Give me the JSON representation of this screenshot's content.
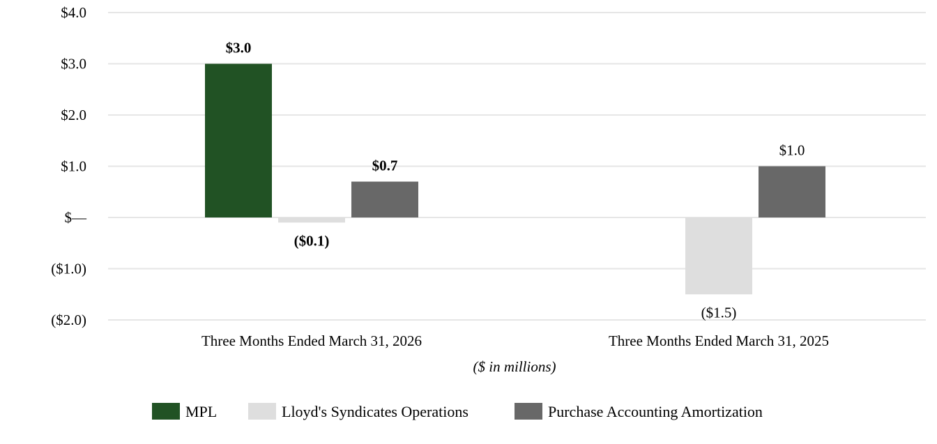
{
  "chart_data": {
    "type": "bar",
    "title": "",
    "xlabel": "($ in millions)",
    "ylabel": "",
    "ylim": [
      -2.0,
      4.0
    ],
    "yticks": [
      {
        "value": 4.0,
        "label": "$4.0"
      },
      {
        "value": 3.0,
        "label": "$3.0"
      },
      {
        "value": 2.0,
        "label": "$2.0"
      },
      {
        "value": 1.0,
        "label": "$1.0"
      },
      {
        "value": 0.0,
        "label": "$—"
      },
      {
        "value": -1.0,
        "label": "($1.0)"
      },
      {
        "value": -2.0,
        "label": "($2.0)"
      }
    ],
    "grid": true,
    "legend_position": "bottom",
    "categories": [
      "Three Months Ended March 31, 2026",
      "Three Months Ended March 31, 2025"
    ],
    "series": [
      {
        "name": "MPL",
        "color": "#215224",
        "values": [
          3.0,
          null
        ],
        "labels": [
          "$3.0",
          ""
        ]
      },
      {
        "name": "Lloyd's Syndicates Operations",
        "color": "#dedede",
        "values": [
          -0.1,
          -1.5
        ],
        "labels": [
          "($0.1)",
          "($1.5)"
        ]
      },
      {
        "name": "Purchase Accounting Amortization",
        "color": "#686868",
        "values": [
          0.7,
          1.0
        ],
        "labels": [
          "$0.7",
          "$1.0"
        ]
      }
    ],
    "label_bold_by_category": [
      true,
      false
    ]
  }
}
